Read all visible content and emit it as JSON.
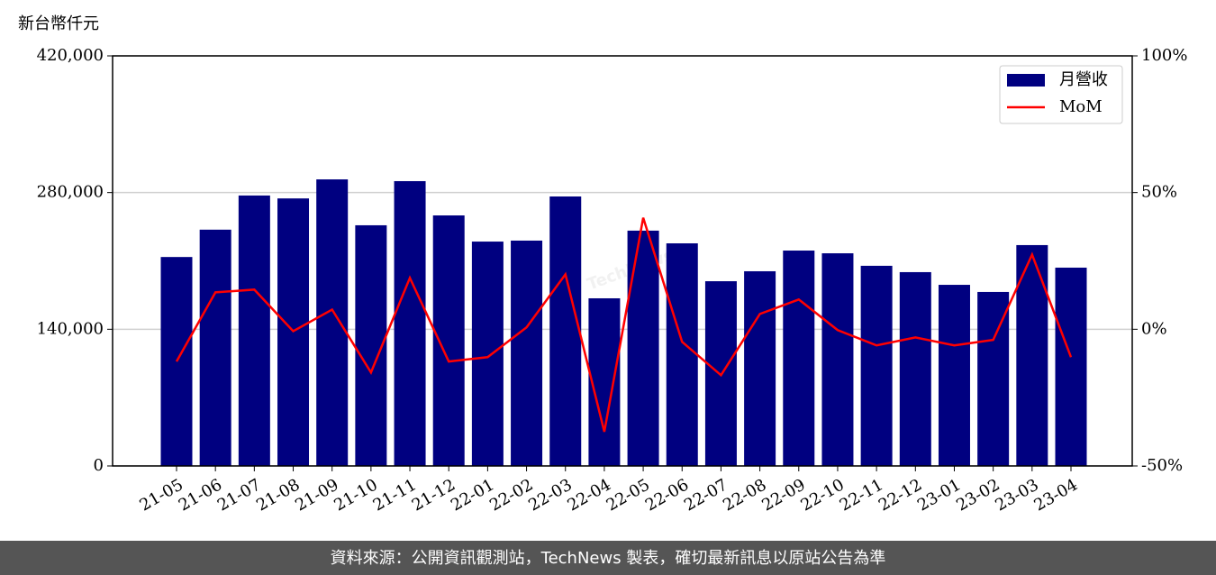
{
  "chart_data": {
    "type": "bar",
    "ylabel": "新台幣仟元",
    "watermark": "TechNews",
    "source": "資料來源：公開資訊觀測站，TechNews 製表，確切最新訊息以原站公告為準",
    "categories": [
      "21-05",
      "21-06",
      "21-07",
      "21-08",
      "21-09",
      "21-10",
      "21-11",
      "21-12",
      "22-01",
      "22-02",
      "22-03",
      "22-04",
      "22-05",
      "22-06",
      "22-07",
      "22-08",
      "22-09",
      "22-10",
      "22-11",
      "22-12",
      "23-01",
      "23-02",
      "23-03",
      "23-04"
    ],
    "series": [
      {
        "name": "月營收",
        "type": "bar",
        "color": "#000080",
        "values": [
          214000,
          242000,
          277000,
          274000,
          293500,
          246500,
          291700,
          256600,
          229800,
          230800,
          276000,
          171700,
          241000,
          228000,
          189200,
          199400,
          220600,
          217800,
          205000,
          198500,
          185500,
          178200,
          226200,
          203100
        ]
      },
      {
        "name": "MoM",
        "type": "line",
        "axis": "y2",
        "color": "#ff0000",
        "values": [
          -11.8,
          13.5,
          14.5,
          -0.7,
          7.2,
          -15.8,
          18.8,
          -11.8,
          -10.2,
          0.7,
          20.1,
          -37.5,
          40.8,
          -4.6,
          -16.8,
          5.6,
          10.9,
          -0.3,
          -5.9,
          -3.0,
          -5.9,
          -3.9,
          27.3,
          -10.2
        ]
      }
    ],
    "ylim": [
      0,
      420000
    ],
    "yticks": [
      {
        "value": 0,
        "label": "0"
      },
      {
        "value": 140000,
        "label": "140,000"
      },
      {
        "value": 280000,
        "label": "280,000"
      },
      {
        "value": 420000,
        "label": "420,000"
      }
    ],
    "y2lim": [
      -50,
      100
    ],
    "y2ticks": [
      {
        "value": -50,
        "label": "-50%"
      },
      {
        "value": 0,
        "label": "0%"
      },
      {
        "value": 50,
        "label": "50%"
      },
      {
        "value": 100,
        "label": "100%"
      }
    ],
    "grid": true,
    "legend": "upper-right"
  }
}
